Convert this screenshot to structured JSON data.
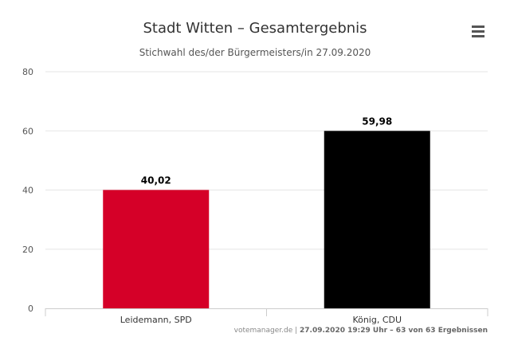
{
  "chart_data": {
    "type": "bar",
    "title": "Stadt Witten – Gesamtergebnis",
    "subtitle": "Stichwahl des/der Bürgermeisters/in 27.09.2020",
    "categories": [
      "Leidemann, SPD",
      "König, CDU"
    ],
    "values": [
      40.02,
      59.98
    ],
    "data_labels": [
      "40,02",
      "59,98"
    ],
    "colors": [
      "#d50028",
      "#000000"
    ],
    "ylim": [
      0,
      80
    ],
    "yticks": [
      0,
      20,
      40,
      60,
      80
    ],
    "grid": true,
    "legend": false
  },
  "credits": {
    "source": "votemanager.de",
    "separator": " | ",
    "detail": "27.09.2020 19:29 Uhr – 63 von 63 Ergebnissen"
  },
  "menu": {
    "icon": "hamburger-menu-icon"
  }
}
